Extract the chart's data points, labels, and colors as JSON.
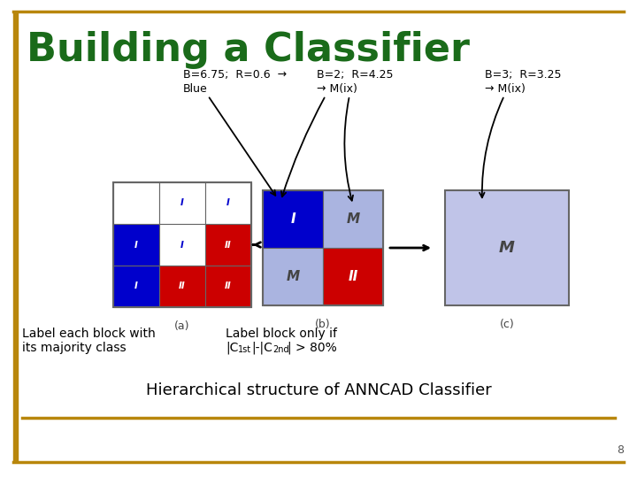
{
  "title": "Building a Classifier",
  "title_color": "#1a6b1a",
  "title_fontsize": 32,
  "bg_color": "#ffffff",
  "border_color": "#b8860b",
  "page_number": "8",
  "colors": {
    "blue": "#0000cc",
    "red": "#cc0000",
    "white": "#ffffff",
    "light_blue": "#aab4e0",
    "light_purple": "#c0c4e8",
    "gray_text": "#555555"
  },
  "grid_a": [
    [
      "white",
      "white",
      "white"
    ],
    [
      "blue",
      "white",
      "red"
    ],
    [
      "blue",
      "red",
      "red"
    ]
  ],
  "labels_a": [
    [
      "",
      "I",
      "I"
    ],
    [
      "I",
      "I",
      "II"
    ],
    [
      "I",
      "II",
      "II"
    ]
  ],
  "label_colors_a": [
    [
      "",
      "blue",
      "blue"
    ],
    [
      "white",
      "blue",
      "white"
    ],
    [
      "white",
      "white",
      "white"
    ]
  ],
  "grid_b": [
    [
      "blue",
      "light_blue"
    ],
    [
      "light_blue",
      "red"
    ]
  ],
  "labels_b": [
    [
      "I",
      "M"
    ],
    [
      "M",
      "II"
    ]
  ],
  "ann1_l1": "B=6.75;  R=0.6  →",
  "ann1_l2": "Blue",
  "ann2_l1": "B=2;  R=4.25",
  "ann2_l2": "→ M(ix)",
  "ann3_l1": "B=3;  R=3.25",
  "ann3_l2": "→ M(ix)",
  "label_left_1": "Label each block with",
  "label_left_2": "its majority class",
  "label_mid_1": "Label block only if",
  "footer": "Hierarchical structure of ANNCAD Classifier"
}
